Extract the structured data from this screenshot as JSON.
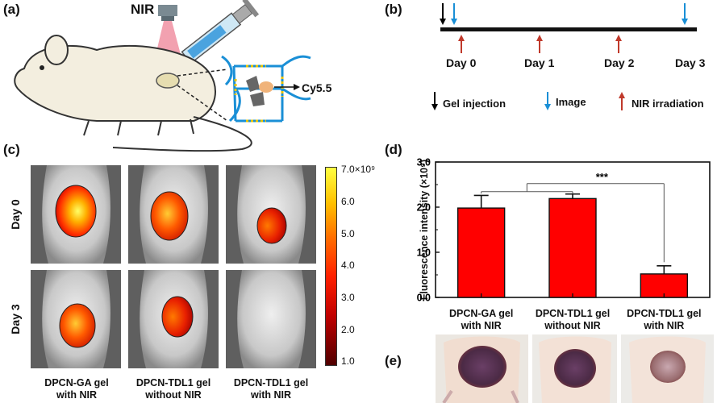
{
  "panel_labels": {
    "a": "(a)",
    "b": "(b)",
    "c": "(c)",
    "d": "(d)",
    "e": "(e)"
  },
  "panel_a": {
    "nir_label": "NIR",
    "dye_label": "Cy5.5"
  },
  "panel_b": {
    "days": [
      "Day 0",
      "Day 1",
      "Day 2",
      "Day 3"
    ],
    "legend": {
      "gel_injection": "Gel injection",
      "image": "Image",
      "nir_irradiation": "NIR irradiation"
    },
    "colors": {
      "gel_injection": "#000000",
      "image": "#1a8fd6",
      "nir_irradiation": "#c0392b"
    }
  },
  "panel_c": {
    "rows": [
      "Day 0",
      "Day 3"
    ],
    "groups": [
      "DPCN-GA gel\nwith NIR",
      "DPCN-TDL1 gel\nwithout NIR",
      "DPCN-TDL1 gel\nwith NIR"
    ],
    "colorbar_ticks": [
      "7.0×10⁹",
      "6.0",
      "5.0",
      "4.0",
      "3.0",
      "2.0",
      "1.0"
    ]
  },
  "chart_data": {
    "type": "bar",
    "categories": [
      "DPCN-GA gel\nwith NIR",
      "DPCN-TDL1 gel\nwithout NIR",
      "DPCN-TDL1 gel\nwith NIR"
    ],
    "values": [
      1.98,
      2.19,
      0.52
    ],
    "errors": [
      0.28,
      0.1,
      0.18
    ],
    "ylabel": "Fluorescence intensity (×10⁹)",
    "ylim": [
      0,
      3.0
    ],
    "yticks": [
      "0.0",
      "1.0",
      "2.0",
      "3.0"
    ],
    "significance": "***",
    "bar_color": "#ff0000"
  }
}
